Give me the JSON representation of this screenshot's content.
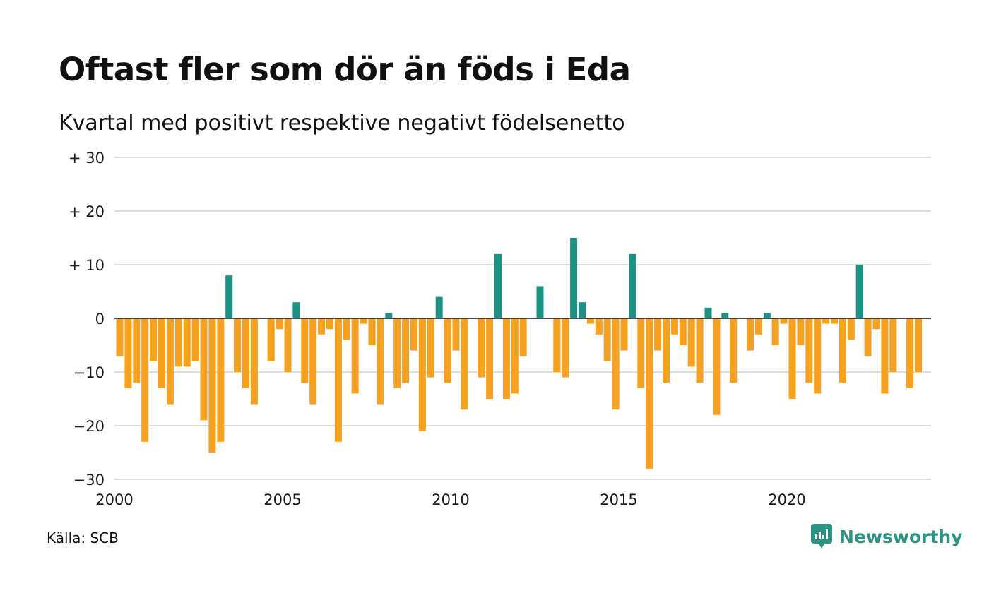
{
  "title": "Oftast fler som dör än föds i Eda",
  "subtitle": "Kvartal med positivt respektive negativt födelsenetto",
  "source": "Källa: SCB",
  "brand": {
    "name": "Newsworthy",
    "icon": "newsworthy-logo-icon",
    "color": "#2a9384"
  },
  "colors": {
    "positive": "#1a9385",
    "negative": "#f6a11f",
    "grid": "#dddddd",
    "zero_line": "#111111"
  },
  "chart_data": {
    "type": "bar",
    "title": "Oftast fler som dör än föds i Eda",
    "subtitle": "Kvartal med positivt respektive negativt födelsenetto",
    "xlabel": "",
    "ylabel": "",
    "ylim": [
      -30,
      30
    ],
    "grid": true,
    "y_ticks": [
      {
        "value": 30,
        "label": "+ 30"
      },
      {
        "value": 20,
        "label": "+ 20"
      },
      {
        "value": 10,
        "label": "+ 10"
      },
      {
        "value": 0,
        "label": "0"
      },
      {
        "value": -10,
        "label": "−10"
      },
      {
        "value": -20,
        "label": "−20"
      },
      {
        "value": -30,
        "label": "−30"
      }
    ],
    "x_ticks": [
      {
        "year": 2000,
        "label": "2000"
      },
      {
        "year": 2005,
        "label": "2005"
      },
      {
        "year": 2010,
        "label": "2010"
      },
      {
        "year": 2015,
        "label": "2015"
      },
      {
        "year": 2020,
        "label": "2020"
      }
    ],
    "start_year": 2000,
    "periods_per_year": 4,
    "values": [
      -7,
      -13,
      -12,
      -23,
      -8,
      -13,
      -16,
      -9,
      -9,
      -8,
      -19,
      -25,
      -23,
      8,
      -10,
      -13,
      -16,
      0,
      -8,
      -2,
      -10,
      3,
      -12,
      -16,
      -3,
      -2,
      -23,
      -4,
      -14,
      -1,
      -5,
      -16,
      1,
      -13,
      -12,
      -6,
      -21,
      -11,
      4,
      -12,
      -6,
      -17,
      0,
      -11,
      -15,
      12,
      -15,
      -14,
      -7,
      0,
      6,
      0,
      -10,
      -11,
      15,
      3,
      -1,
      -3,
      -8,
      -17,
      -6,
      12,
      -13,
      -28,
      -6,
      -12,
      -3,
      -5,
      -9,
      -12,
      2,
      -18,
      1,
      -12,
      0,
      -6,
      -3,
      1,
      -5,
      -1,
      -15,
      -5,
      -12,
      -14,
      -1,
      -1,
      -12,
      -4,
      10,
      -7,
      -2,
      -14,
      -10,
      0,
      -13,
      -10
    ]
  }
}
